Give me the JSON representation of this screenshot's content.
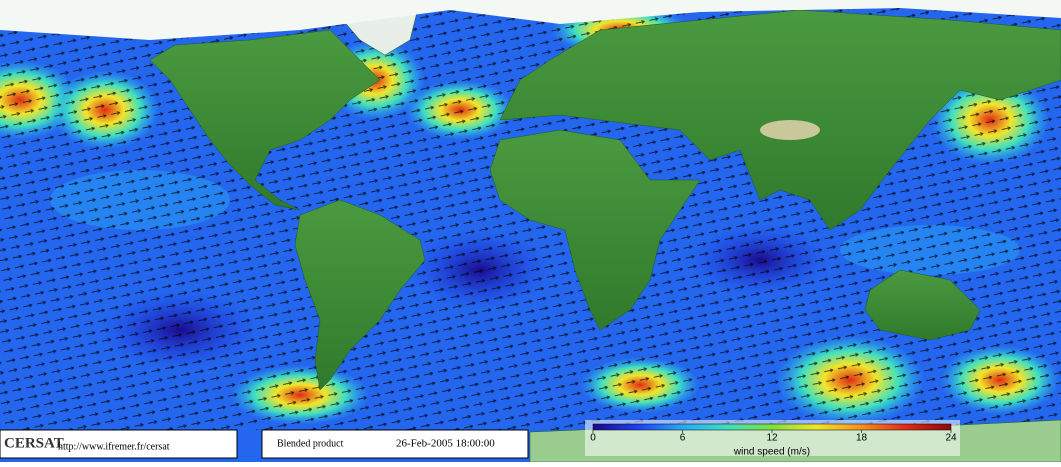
{
  "logo": "CERSAT",
  "url": "http://www.ifremer.fr/cersat",
  "product": "Blended product",
  "timestamp": "26-Feb-2005 18:00:00",
  "colorbar": {
    "label": "wind speed (m/s)",
    "range": [
      0,
      24
    ],
    "ticks": [
      0,
      6,
      12,
      18,
      24
    ],
    "colors": [
      "#1a0a8c",
      "#1f3ff0",
      "#27a8f5",
      "#3fe0c0",
      "#7ee03a",
      "#f2e52a",
      "#f5901e",
      "#e02a14",
      "#8c0a0a"
    ]
  }
}
